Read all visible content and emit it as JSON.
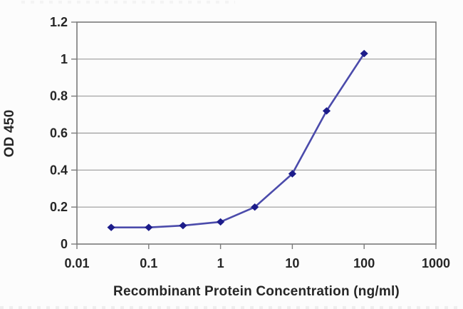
{
  "chart_data": {
    "type": "line",
    "title": "",
    "xlabel": "Recombinant Protein Concentration (ng/ml)",
    "ylabel": "OD 450",
    "x_scale": "log",
    "x": [
      0.03,
      0.1,
      0.3,
      1,
      3,
      10,
      30,
      100
    ],
    "y": [
      0.09,
      0.09,
      0.1,
      0.12,
      0.2,
      0.38,
      0.72,
      1.03
    ],
    "xlim": [
      0.01,
      1000
    ],
    "ylim": [
      0,
      1.2
    ],
    "x_ticks": [
      0.01,
      0.1,
      1,
      10,
      100,
      1000
    ],
    "x_tick_labels": [
      "0.01",
      "0.1",
      "1",
      "10",
      "100",
      "1000"
    ],
    "y_ticks": [
      0,
      0.2,
      0.4,
      0.6,
      0.8,
      1,
      1.2
    ],
    "y_tick_labels": [
      "0",
      "0.2",
      "0.4",
      "0.6",
      "0.8",
      "1",
      "1.2"
    ],
    "grid": "horizontal-only",
    "legend": "none",
    "marker": "diamond",
    "colors": {
      "line": "#4b4bab",
      "marker": "#1c1c8a",
      "gridline": "#9a9a9a",
      "border": "#7b7b7b",
      "text": "#262626",
      "background": "#fcfcfc"
    }
  }
}
